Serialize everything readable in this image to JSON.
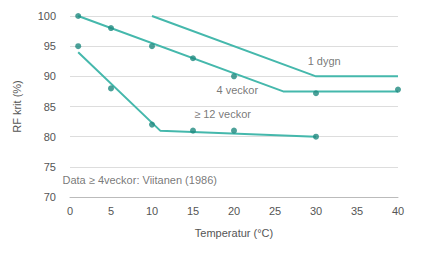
{
  "chart_data": {
    "type": "line",
    "x_label": "Temperatur (°C)",
    "y_label": "RF krit (%)",
    "xlim": [
      0,
      40
    ],
    "xticks": [
      0,
      5,
      10,
      15,
      20,
      25,
      30,
      35,
      40
    ],
    "ylim": [
      70,
      100
    ],
    "yticks": [
      70,
      75,
      80,
      85,
      90,
      95,
      100
    ],
    "grid": true,
    "legend": false,
    "series": [
      {
        "type": "line",
        "marker": "none",
        "color": "#45b8ac",
        "x": [
          10,
          30,
          40
        ],
        "values": [
          100,
          90,
          90
        ]
      },
      {
        "type": "line",
        "marker": "none",
        "color": "#45b8ac",
        "x": [
          1,
          26,
          40
        ],
        "values": [
          100,
          87.5,
          87.5
        ]
      },
      {
        "type": "line",
        "marker": "none",
        "color": "#45b8ac",
        "x": [
          1,
          11,
          30
        ],
        "values": [
          94,
          81,
          80
        ]
      },
      {
        "type": "scatter",
        "marker": "circle",
        "color": "#1f8a80",
        "x": [
          1,
          5,
          10,
          15,
          20,
          30,
          40
        ],
        "values": [
          100,
          98,
          95,
          93,
          90,
          87.2,
          87.8
        ]
      },
      {
        "type": "scatter",
        "marker": "circle",
        "color": "#1f8a80",
        "x": [
          1,
          5,
          10,
          15,
          20,
          30
        ],
        "values": [
          95,
          88,
          82,
          81,
          81,
          80
        ]
      }
    ],
    "annotations": [
      {
        "text": "1 dygn",
        "x": 31,
        "y": 92.5
      },
      {
        "text": "4 veckor",
        "x": 20.4,
        "y": 87.8
      },
      {
        "text": "≥ 12 veckor",
        "x": 18.6,
        "y": 83.8
      },
      {
        "text": "Data ≥ 4veckor: Viitanen (1986)",
        "x": 8.5,
        "y": 72.8
      }
    ]
  }
}
